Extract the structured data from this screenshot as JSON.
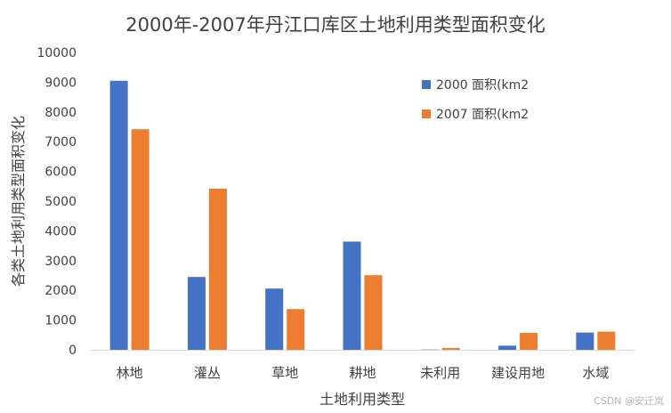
{
  "chart_data": {
    "type": "bar",
    "title": "2000年-2007年丹江口库区土地利用类型面积变化",
    "xlabel": "土地利用类型",
    "ylabel": "各类土地利用类型面积变化",
    "ylim": [
      0,
      10000
    ],
    "yticks": [
      0,
      1000,
      2000,
      3000,
      4000,
      5000,
      6000,
      7000,
      8000,
      9000,
      10000
    ],
    "categories": [
      "林地",
      "灌丛",
      "草地",
      "耕地",
      "未利用",
      "建设用地",
      "水域"
    ],
    "series": [
      {
        "name": "2000 面积(km2",
        "color": "#4472C4",
        "values": [
          9050,
          2450,
          2060,
          3640,
          10,
          140,
          580
        ]
      },
      {
        "name": "2007 面积(km2",
        "color": "#ED7D31",
        "values": [
          7420,
          5420,
          1370,
          2510,
          60,
          570,
          610
        ]
      }
    ],
    "legend_position": "top-right",
    "grid": false
  },
  "watermark": "CSDN @安迁岚"
}
